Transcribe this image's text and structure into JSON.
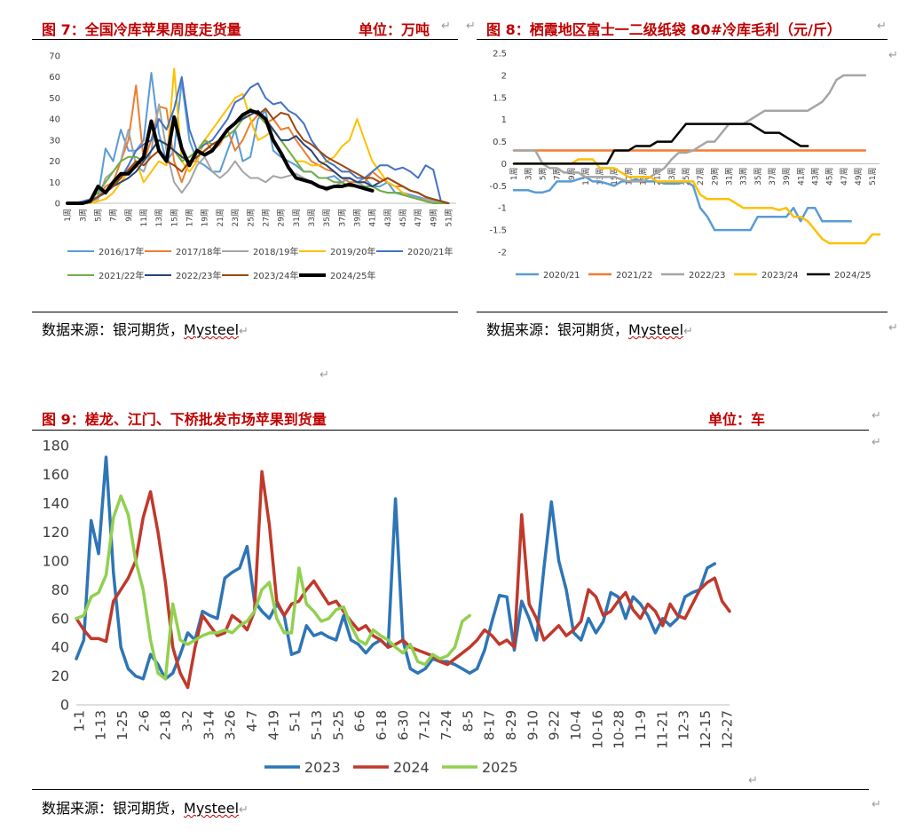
{
  "paragraph_mark": "↵",
  "fig7": {
    "title": "图 7：全国冷库苹果周度走货量",
    "unit": "单位：万吨",
    "source": "数据来源：银河期货，",
    "source_brand": "Mysteel",
    "chart_data": {
      "type": "line",
      "title": "",
      "xlabel": "",
      "ylabel": "",
      "ylim": [
        0,
        70
      ],
      "yticks": [
        0,
        10,
        20,
        30,
        40,
        50,
        60,
        70
      ],
      "x_tick_labels": [
        "1周",
        "3周",
        "5周",
        "7周",
        "9周",
        "11周",
        "13周",
        "15周",
        "17周",
        "19周",
        "21周",
        "23周",
        "25周",
        "27周",
        "29周",
        "31周",
        "33周",
        "35周",
        "37周",
        "39周",
        "41周",
        "43周",
        "45周",
        "47周",
        "49周",
        "51周"
      ],
      "legend": "bottom",
      "colors": {
        "2016/17年": "#5b9bd5",
        "2017/18年": "#ed7d31",
        "2018/19年": "#a5a5a5",
        "2019/20年": "#ffc000",
        "2020/21年": "#4472c4",
        "2021/22年": "#70ad47",
        "2022/23年": "#264478",
        "2023/24年": "#9e480e",
        "2024/25年": "#000000"
      },
      "series": [
        {
          "name": "2016/17年",
          "values": [
            0,
            0,
            1,
            2,
            3,
            26,
            20,
            35,
            25,
            25,
            30,
            62,
            33,
            20,
            25,
            58,
            30,
            20,
            18,
            15,
            15,
            25,
            35,
            20,
            22,
            40,
            44,
            25,
            22,
            20,
            18,
            15,
            15,
            12,
            12,
            13,
            10,
            12,
            10,
            12,
            8,
            8,
            10,
            5,
            5,
            4,
            3,
            2,
            1,
            0,
            0
          ]
        },
        {
          "name": "2017/18年",
          "values": [
            0,
            0,
            0,
            1,
            3,
            8,
            10,
            20,
            30,
            56,
            20,
            30,
            46,
            45,
            20,
            10,
            20,
            20,
            30,
            25,
            28,
            35,
            25,
            30,
            38,
            42,
            38,
            40,
            35,
            36,
            30,
            25,
            20,
            18,
            16,
            15,
            12,
            10,
            10,
            10,
            15,
            12,
            10,
            8,
            8,
            6,
            5,
            3,
            2,
            1,
            0
          ]
        },
        {
          "name": "2018/19年",
          "values": [
            0,
            0,
            0,
            1,
            2,
            12,
            15,
            20,
            35,
            18,
            15,
            25,
            47,
            25,
            10,
            5,
            10,
            18,
            22,
            15,
            12,
            15,
            20,
            15,
            12,
            12,
            10,
            13,
            12,
            13,
            14,
            12,
            10,
            8,
            6,
            8,
            10,
            12,
            10,
            8,
            8,
            6,
            5,
            5,
            4,
            3,
            2,
            2,
            1,
            0,
            0
          ]
        },
        {
          "name": "2019/20年",
          "values": [
            0,
            0,
            0,
            0,
            1,
            2,
            5,
            10,
            15,
            20,
            10,
            15,
            20,
            18,
            64,
            20,
            15,
            20,
            30,
            35,
            40,
            45,
            50,
            52,
            40,
            30,
            32,
            35,
            30,
            25,
            20,
            20,
            18,
            18,
            20,
            22,
            27,
            30,
            40,
            30,
            20,
            15,
            10,
            8,
            5,
            3,
            2,
            1,
            0,
            0,
            0
          ]
        },
        {
          "name": "2020/21年",
          "values": [
            0,
            0,
            0,
            1,
            3,
            5,
            8,
            12,
            18,
            25,
            28,
            30,
            40,
            35,
            45,
            60,
            35,
            25,
            28,
            30,
            35,
            40,
            48,
            50,
            55,
            57,
            50,
            47,
            48,
            44,
            42,
            38,
            30,
            25,
            20,
            18,
            15,
            15,
            12,
            12,
            15,
            18,
            18,
            16,
            17,
            15,
            12,
            18,
            16,
            1,
            0
          ]
        },
        {
          "name": "2021/22年",
          "values": [
            0,
            0,
            0,
            2,
            5,
            10,
            15,
            20,
            22,
            22,
            20,
            25,
            30,
            28,
            25,
            20,
            22,
            25,
            30,
            28,
            30,
            32,
            35,
            40,
            45,
            42,
            38,
            35,
            30,
            25,
            20,
            15,
            15,
            12,
            12,
            10,
            10,
            8,
            8,
            8,
            8,
            6,
            5,
            5,
            4,
            3,
            2,
            1,
            0,
            0,
            0
          ]
        },
        {
          "name": "2022/23年",
          "values": [
            0,
            0,
            0,
            1,
            3,
            5,
            8,
            10,
            12,
            15,
            20,
            25,
            30,
            28,
            25,
            22,
            20,
            22,
            25,
            28,
            30,
            35,
            38,
            40,
            42,
            44,
            40,
            35,
            30,
            30,
            32,
            28,
            25,
            20,
            18,
            15,
            12,
            12,
            10,
            10,
            8,
            10,
            12,
            10,
            8,
            6,
            5,
            3,
            2,
            1,
            0
          ]
        },
        {
          "name": "2023/24年",
          "values": [
            0,
            0,
            0,
            1,
            3,
            6,
            8,
            12,
            16,
            20,
            18,
            22,
            25,
            20,
            18,
            15,
            20,
            22,
            25,
            28,
            30,
            35,
            38,
            42,
            44,
            42,
            45,
            40,
            43,
            42,
            35,
            30,
            28,
            25,
            22,
            20,
            18,
            16,
            14,
            12,
            12,
            10,
            12,
            10,
            8,
            6,
            5,
            3,
            2,
            1,
            0
          ]
        },
        {
          "name": "2024/25年",
          "values": [
            0,
            0,
            0,
            1,
            8,
            5,
            10,
            14,
            14,
            18,
            22,
            39,
            25,
            20,
            41,
            26,
            18,
            25,
            23,
            25,
            30,
            35,
            38,
            42,
            44,
            43,
            40,
            30,
            24,
            17,
            12,
            11,
            10,
            8,
            7,
            8,
            8,
            9,
            8,
            7,
            6
          ]
        }
      ]
    }
  },
  "fig8": {
    "title": "图 8：栖霞地区富士一二级纸袋 80#冷库毛利（元/斤）",
    "source": "数据来源：银河期货，",
    "source_brand": "Mysteel",
    "chart_data": {
      "type": "line",
      "title": "",
      "xlabel": "",
      "ylabel": "",
      "ylim": [
        -2,
        2.5
      ],
      "yticks": [
        -2,
        -1.5,
        -1,
        -0.5,
        0,
        0.5,
        1,
        1.5,
        2,
        2.5
      ],
      "x_tick_labels": [
        "1周",
        "3周",
        "5周",
        "7周",
        "9周",
        "11周",
        "13周",
        "15周",
        "17周",
        "19周",
        "21周",
        "23周",
        "25周",
        "27周",
        "29周",
        "31周",
        "33周",
        "35周",
        "37周",
        "39周",
        "41周",
        "43周",
        "45周",
        "47周",
        "49周",
        "51周"
      ],
      "legend": "bottom",
      "colors": {
        "2020/21": "#5b9bd5",
        "2021/22": "#ed7d31",
        "2022/23": "#a5a5a5",
        "2023/24": "#ffc000",
        "2024/25": "#000000"
      },
      "series": [
        {
          "name": "2020/21",
          "values": [
            -0.6,
            -0.6,
            -0.6,
            -0.65,
            -0.65,
            -0.6,
            -0.4,
            -0.4,
            -0.4,
            -0.35,
            -0.3,
            -0.4,
            -0.4,
            -0.45,
            -0.5,
            -0.4,
            -0.4,
            -0.35,
            -0.4,
            -0.4,
            -0.4,
            -0.45,
            -0.45,
            -0.45,
            -0.4,
            -0.5,
            -1.0,
            -1.2,
            -1.5,
            -1.5,
            -1.5,
            -1.5,
            -1.5,
            -1.5,
            -1.2,
            -1.2,
            -1.2,
            -1.2,
            -1.2,
            -1.0,
            -1.3,
            -1.0,
            -1.0,
            -1.3,
            -1.3,
            -1.3,
            -1.3,
            -1.3
          ]
        },
        {
          "name": "2021/22",
          "values": [
            0.3,
            0.3,
            0.3,
            0.3,
            0.3,
            0.3,
            0.3,
            0.3,
            0.3,
            0.3,
            0.3,
            0.3,
            0.3,
            0.3,
            0.3,
            0.3,
            0.3,
            0.3,
            0.3,
            0.3,
            0.3,
            0.3,
            0.3,
            0.3,
            0.3,
            0.3,
            0.3,
            0.3,
            0.3,
            0.3,
            0.3,
            0.3,
            0.3,
            0.3,
            0.3,
            0.3,
            0.3,
            0.3,
            0.3,
            0.3,
            0.3,
            0.3,
            0.3,
            0.3,
            0.3,
            0.3,
            0.3,
            0.3,
            0.3,
            0.3
          ]
        },
        {
          "name": "2022/23",
          "values": [
            0.3,
            0.3,
            0.3,
            0.3,
            0.0,
            -0.1,
            -0.1,
            -0.2,
            -0.2,
            -0.2,
            -0.3,
            -0.3,
            -0.3,
            -0.3,
            -0.3,
            -0.35,
            -0.4,
            -0.4,
            -0.4,
            -0.3,
            -0.2,
            -0.1,
            0.1,
            0.25,
            0.25,
            0.3,
            0.4,
            0.5,
            0.5,
            0.7,
            0.9,
            0.9,
            0.9,
            1.0,
            1.1,
            1.2,
            1.2,
            1.2,
            1.2,
            1.2,
            1.2,
            1.2,
            1.3,
            1.4,
            1.6,
            1.9,
            2.0,
            2.0,
            2.0,
            2.0
          ]
        },
        {
          "name": "2023/24",
          "values": [
            0,
            0,
            0,
            0,
            0,
            0,
            0,
            0,
            0,
            0.1,
            0.1,
            0.1,
            -0.1,
            -0.1,
            -0.1,
            -0.2,
            -0.3,
            -0.3,
            -0.3,
            -0.3,
            -0.4,
            -0.4,
            -0.4,
            -0.4,
            -0.4,
            -0.4,
            -0.7,
            -0.8,
            -0.8,
            -0.8,
            -0.8,
            -0.9,
            -1.0,
            -1.0,
            -1.0,
            -1.0,
            -1.0,
            -1.05,
            -1.0,
            -1.2,
            -1.2,
            -1.3,
            -1.5,
            -1.7,
            -1.8,
            -1.8,
            -1.8,
            -1.8,
            -1.8,
            -1.8,
            -1.6,
            -1.6
          ]
        },
        {
          "name": "2024/25",
          "values": [
            0,
            0,
            0,
            0,
            0,
            0,
            0,
            0,
            0,
            0,
            0,
            0,
            0,
            0,
            0.3,
            0.3,
            0.3,
            0.4,
            0.4,
            0.4,
            0.5,
            0.5,
            0.5,
            0.7,
            0.9,
            0.9,
            0.9,
            0.9,
            0.9,
            0.9,
            0.9,
            0.9,
            0.9,
            0.9,
            0.8,
            0.7,
            0.7,
            0.7,
            0.6,
            0.5,
            0.4,
            0.4
          ]
        }
      ]
    }
  },
  "fig9": {
    "title": "图 9：槎龙、江门、下桥批发市场苹果到货量",
    "unit": "单位：车",
    "source": "数据来源：银河期货，",
    "source_brand": "Mysteel",
    "chart_data": {
      "type": "line",
      "title": "",
      "xlabel": "",
      "ylabel": "",
      "ylim": [
        0,
        180
      ],
      "yticks": [
        0,
        20,
        40,
        60,
        80,
        100,
        120,
        140,
        160,
        180
      ],
      "x_tick_labels": [
        "1-1",
        "1-13",
        "1-25",
        "2-6",
        "2-18",
        "3-2",
        "3-14",
        "3-26",
        "4-7",
        "4-19",
        "5-1",
        "5-13",
        "5-25",
        "6-6",
        "6-18",
        "6-30",
        "7-12",
        "7-24",
        "8-5",
        "8-17",
        "8-29",
        "9-10",
        "9-22",
        "10-4",
        "10-16",
        "10-28",
        "11-9",
        "11-21",
        "12-3",
        "12-15",
        "12-27"
      ],
      "legend": "bottom",
      "colors": {
        "2023": "#2e75b6",
        "2024": "#c0392b",
        "2025": "#92d050"
      },
      "series": [
        {
          "name": "2023",
          "values": [
            32,
            45,
            128,
            105,
            172,
            92,
            40,
            25,
            20,
            18,
            35,
            28,
            18,
            22,
            35,
            50,
            45,
            65,
            62,
            60,
            88,
            92,
            95,
            110,
            72,
            65,
            60,
            70,
            62,
            35,
            37,
            55,
            48,
            50,
            47,
            45,
            62,
            45,
            42,
            36,
            42,
            45,
            40,
            143,
            45,
            25,
            22,
            25,
            32,
            30,
            30,
            28,
            25,
            22,
            25,
            38,
            58,
            76,
            75,
            38,
            72,
            60,
            45,
            95,
            141,
            100,
            80,
            50,
            45,
            60,
            50,
            58,
            78,
            75,
            60,
            75,
            70,
            62,
            50,
            60,
            55,
            60,
            75,
            78,
            80,
            95,
            98
          ]
        },
        {
          "name": "2024",
          "values": [
            60,
            52,
            46,
            46,
            44,
            72,
            80,
            88,
            100,
            130,
            148,
            120,
            85,
            40,
            22,
            12,
            40,
            62,
            55,
            48,
            50,
            62,
            58,
            52,
            65,
            162,
            125,
            72,
            62,
            70,
            72,
            80,
            86,
            78,
            70,
            72,
            65,
            58,
            52,
            55,
            48,
            45,
            40,
            42,
            45,
            40,
            38,
            36,
            34,
            30,
            28,
            32,
            36,
            40,
            45,
            52,
            48,
            42,
            45,
            40,
            132,
            70,
            60,
            45,
            50,
            55,
            48,
            52,
            58,
            80,
            75,
            62,
            65,
            72,
            78,
            66,
            60,
            70,
            65,
            55,
            70,
            62,
            60,
            70,
            80,
            85,
            88,
            72,
            65
          ]
        },
        {
          "name": "2025",
          "values": [
            60,
            62,
            75,
            78,
            90,
            130,
            145,
            132,
            100,
            80,
            45,
            22,
            18,
            70,
            45,
            42,
            45,
            48,
            50,
            50,
            52,
            50,
            55,
            58,
            65,
            80,
            85,
            60,
            50,
            50,
            95,
            70,
            65,
            58,
            60,
            66,
            68,
            55,
            45,
            42,
            52,
            48,
            45,
            40,
            36,
            42,
            30,
            28,
            35,
            32,
            34,
            40,
            58,
            62
          ]
        }
      ]
    }
  }
}
